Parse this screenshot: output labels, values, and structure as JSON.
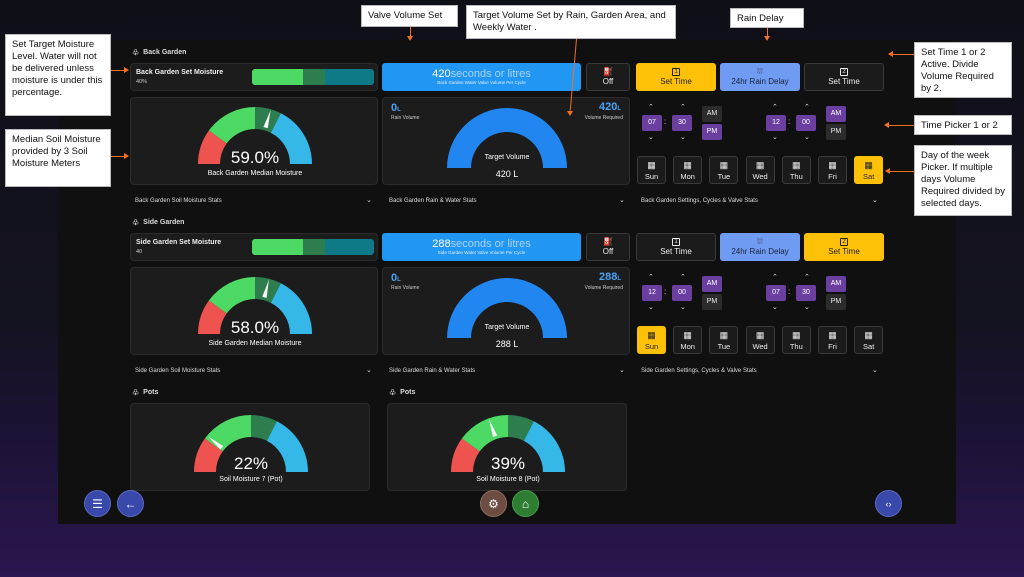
{
  "notes": {
    "moisture": "Set Target Moisture Level. Water will not be delivered unless moisture is under this percentage.",
    "median": "Median Soil Moisture provided by 3 Soil Moisture Meters",
    "valve": "Valve Volume Set",
    "target": "Target Volume Set by Rain, Garden Area, and Weekly Water .",
    "rain_delay": "Rain Delay",
    "set_time": "Set Time 1 or 2 Active. Divide Volume Required by 2.",
    "time_picker": "Time Picker 1 or 2",
    "day_picker": "Day of the week Picker. If multiple days Volume Required divided by selected days."
  },
  "sections": {
    "back": {
      "heading": "Back Garden",
      "moisture_title": "Back Garden Set Moisture",
      "moisture_value": "40%",
      "valve_value": "420",
      "valve_units": "seconds or litres",
      "valve_caption": "Back Garden Water Valve Volume Per Cycle",
      "valve_state": "Off",
      "set_time_1": "Set Time",
      "rain_delay": "24hr Rain Delay",
      "set_time_2": "Set Time",
      "gauge_value": "59.0%",
      "gauge_label": "Back Garden Median Moisture",
      "rain_volume": "0",
      "rain_volume_unit": "L",
      "rain_volume_label": "Rain Volume",
      "volume_required": "420",
      "volume_required_unit": "L",
      "volume_required_label": "Volume Required",
      "target_label": "Target Volume",
      "target_value": "420 L",
      "t1_hour": "07",
      "t1_min": "30",
      "t1_am": "AM",
      "t1_pm": "PM",
      "t2_hour": "12",
      "t2_min": "00",
      "t2_am": "AM",
      "t2_pm": "PM",
      "stats_moisture": "Back Garden Soil Moisture Stats",
      "stats_rain": "Back Garden Rain & Water Stats",
      "stats_settings": "Back Garden Settings, Cycles & Valve Stats"
    },
    "side": {
      "heading": "Side Garden",
      "moisture_title": "Side Garden Set Moisture",
      "moisture_value": "40",
      "valve_value": "288",
      "valve_units": "seconds or litres",
      "valve_caption": "Side Garden Water Valve Volume Per Cycle",
      "valve_state": "Off",
      "set_time_1": "Set Time",
      "rain_delay": "24hr Rain Delay",
      "set_time_2": "Set Time",
      "gauge_value": "58.0%",
      "gauge_label": "Side Garden Median Moisture",
      "rain_volume": "0",
      "rain_volume_unit": "L",
      "rain_volume_label": "Rain Volume",
      "volume_required": "288",
      "volume_required_unit": "L",
      "volume_required_label": "Volume Required",
      "target_label": "Target Volume",
      "target_value": "288 L",
      "t1_hour": "12",
      "t1_min": "00",
      "t1_am": "AM",
      "t1_pm": "PM",
      "t2_hour": "07",
      "t2_min": "30",
      "t2_am": "AM",
      "t2_pm": "PM",
      "stats_moisture": "Side Garden Soil Moisture Stats",
      "stats_rain": "Side Garden Rain & Water Stats",
      "stats_settings": "Side Garden Settings, Cycles & Valve Stats"
    }
  },
  "days": [
    "Sun",
    "Mon",
    "Tue",
    "Wed",
    "Thu",
    "Fri",
    "Sat"
  ],
  "pots": [
    {
      "heading": "Pots",
      "value": "22%",
      "label": "Soil Moisture 7 (Pot)",
      "level": 0.22
    },
    {
      "heading": "Pots",
      "value": "39%",
      "label": "Soil Moisture 8 (Pot)",
      "level": 0.39
    }
  ],
  "gauges": {
    "back_level": 0.59,
    "side_level": 0.58
  },
  "colors": {
    "red": "#ef5350",
    "green": "#4cd964",
    "dkgreen": "#2e7d4f",
    "cyan": "#35b8e8",
    "yellow": "#ffc107",
    "blue": "#2196f3",
    "purple": "#6b3fa0",
    "annotation": "#f37021"
  }
}
